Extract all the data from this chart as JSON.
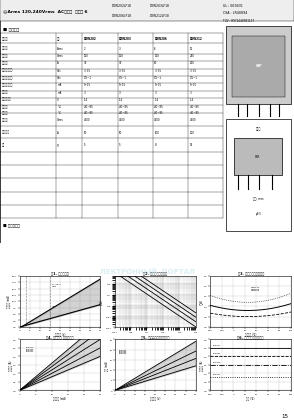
{
  "bg_color": "#ffffff",
  "page_number": "15",
  "certifications": [
    "UL : E69431",
    "CSA : LR40894",
    "TUV : R9724487B1157"
  ]
}
